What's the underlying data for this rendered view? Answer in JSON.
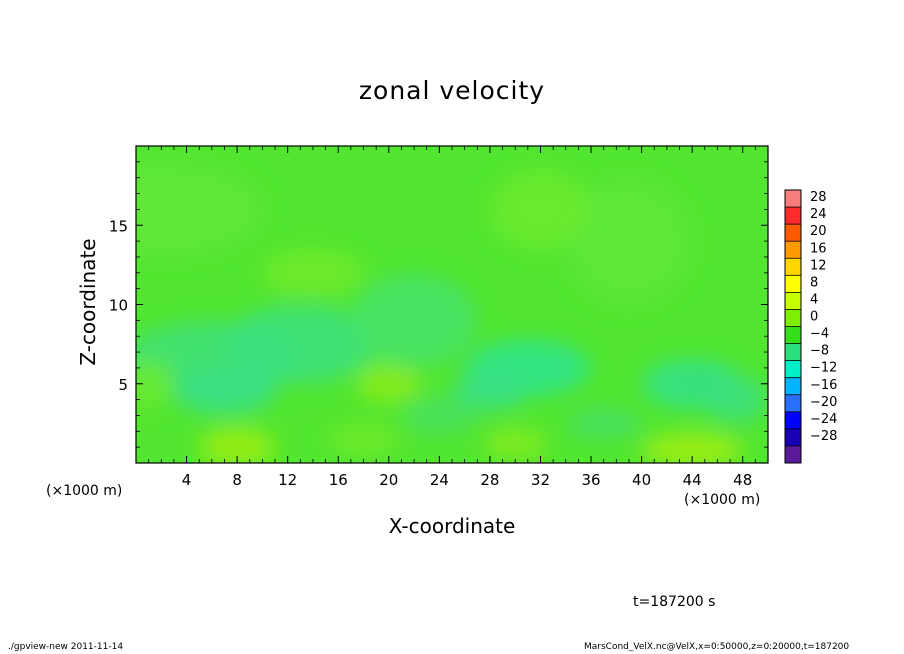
{
  "chart_data": {
    "type": "heatmap",
    "title": "zonal velocity",
    "xlabel": "X-coordinate",
    "ylabel": "Z-coordinate",
    "x_units": "(×1000 m)",
    "xlim": [
      0,
      50
    ],
    "ylim": [
      0,
      20
    ],
    "x_ticks": [
      "4",
      "8",
      "12",
      "16",
      "20",
      "24",
      "28",
      "32",
      "36",
      "40",
      "44",
      "48"
    ],
    "y_ticks": [
      "5",
      "10",
      "15"
    ],
    "colorbar": {
      "levels": [
        "28",
        "24",
        "20",
        "16",
        "12",
        "8",
        "4",
        "0",
        "−4",
        "−8",
        "−12",
        "−16",
        "−20",
        "−24",
        "−28"
      ],
      "colors": [
        "#f77c7c",
        "#ff2a2a",
        "#ff5a00",
        "#ff9a00",
        "#ffd600",
        "#ffff00",
        "#c8ff00",
        "#7cf000",
        "#34e01a",
        "#28e07c",
        "#00f0c8",
        "#00b4ff",
        "#2870ff",
        "#0000ff",
        "#1a00b4",
        "#5a1a9a"
      ]
    },
    "field_summary": "Field values mostly between -8 and 8; values near 0 to +4 dominate the domain, with weak negative patches (about -6 to -8) at Z around 3-7 km and weak positive patches (about +6 to +8) near the bottom boundary around X=8, X=20 and X=44."
  },
  "annotations": {
    "time": "t=187200 s",
    "x_units_right": "(×1000 m)"
  },
  "footer": {
    "left": "./gpview-new  2011-11-14",
    "right": "MarsCond_VelX.nc@VelX,x=0:50000,z=0:20000,t=187200"
  }
}
